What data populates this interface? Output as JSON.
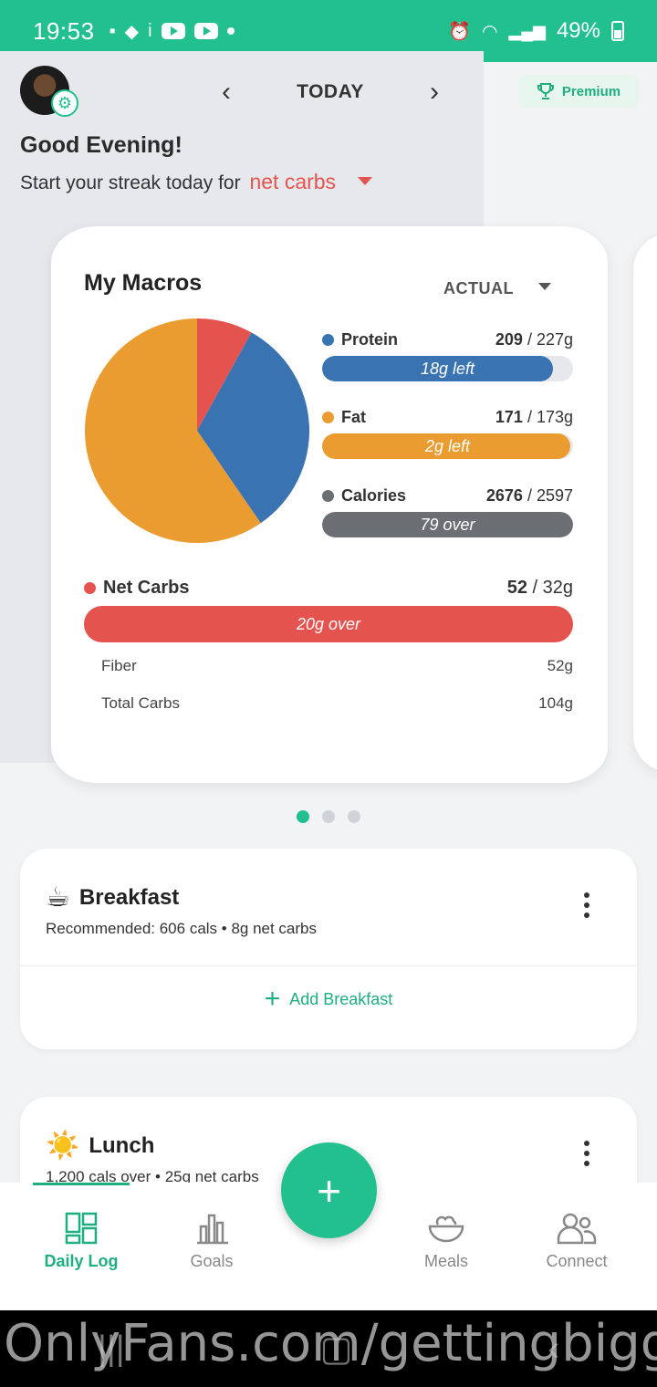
{
  "status_bar": {
    "time": "19:53",
    "battery": "49%"
  },
  "header": {
    "date_label": "TODAY",
    "premium_label": "Premium",
    "greeting": "Good Evening!",
    "streak_text": "Start your streak today for",
    "streak_metric": "net carbs"
  },
  "macros": {
    "title": "My Macros",
    "mode": "ACTUAL",
    "rows": [
      {
        "name": "Protein",
        "consumed": "209",
        "target": "/ 227g",
        "bar_text": "18g left",
        "fraction": 0.92,
        "color": "#3a73b1"
      },
      {
        "name": "Fat",
        "consumed": "171",
        "target": "/ 173g",
        "bar_text": "2g left",
        "fraction": 0.99,
        "color": "#ea9c30"
      },
      {
        "name": "Calories",
        "consumed": "2676",
        "target": "/ 2597",
        "bar_text": "79 over",
        "fraction": 1.0,
        "color": "#6b6e72"
      }
    ],
    "net_carbs": {
      "name": "Net Carbs",
      "consumed": "52",
      "target": "/ 32g",
      "bar_text": "20g over",
      "fraction": 1.0,
      "color": "#e5534f"
    },
    "fiber": {
      "label": "Fiber",
      "value": "52g"
    },
    "total_carbs": {
      "label": "Total Carbs",
      "value": "104g"
    }
  },
  "chart_data": {
    "type": "pie",
    "series": [
      {
        "name": "Net Carbs",
        "value": 52,
        "color": "#e5534f"
      },
      {
        "name": "Protein",
        "value": 209,
        "color": "#3a73b1"
      },
      {
        "name": "Fat",
        "value": 385,
        "color": "#ea9c30"
      }
    ]
  },
  "meals": [
    {
      "title": "Breakfast",
      "emoji": "☕",
      "subtitle": "Recommended: 606 cals • 8g net carbs",
      "add_label": "Add Breakfast"
    },
    {
      "title": "Lunch",
      "emoji": "☀️",
      "subtitle": "1,200 cals over • 25g net carbs"
    }
  ],
  "bottom_nav": {
    "items": [
      "Daily Log",
      "Goals",
      "Meals",
      "Connect"
    ],
    "fab_label": "+"
  },
  "watermark": "OnlyFans.com/gettingbigg"
}
